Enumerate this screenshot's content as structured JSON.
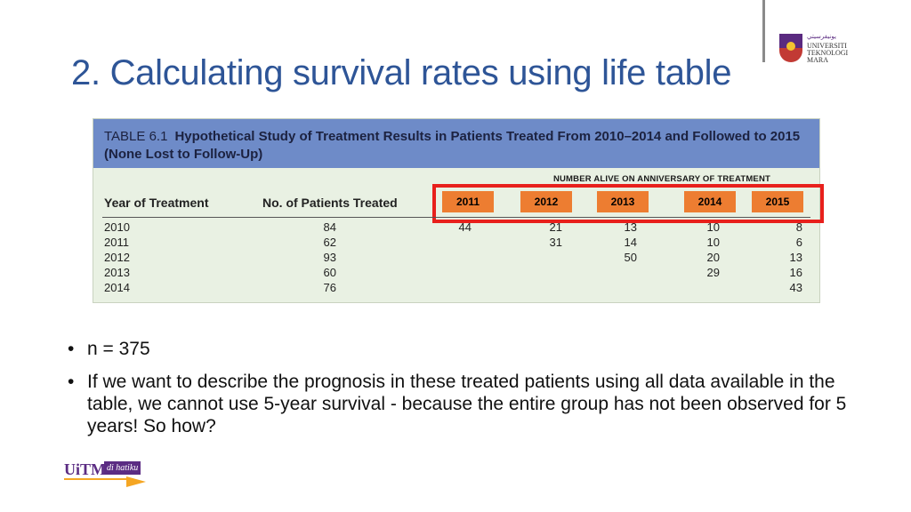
{
  "logo": {
    "jawi": "ﻳﻮﻧﻴﻔﺮﺳﻴﺘﻲ",
    "lines": [
      "UNIVERSITI",
      "TEKNOLOGI",
      "MARA"
    ]
  },
  "slide_title": "2. Calculating survival rates using life table",
  "table": {
    "table_number": "TABLE 6.1",
    "caption": "Hypothetical Study of Treatment Results in Patients Treated From 2010–2014 and Followed to 2015 (None Lost to Follow-Up)",
    "group_header": "NUMBER ALIVE ON ANNIVERSARY OF TREATMENT",
    "col_year": "Year of Treatment",
    "col_patients": "No. of Patients Treated",
    "years": [
      "2011",
      "2012",
      "2013",
      "2014",
      "2015"
    ],
    "rows": [
      {
        "year": "2010",
        "patients": "84",
        "v2011": "44",
        "v2012": "21",
        "v2013": "13",
        "v2014": "10",
        "v2015": "8"
      },
      {
        "year": "2011",
        "patients": "62",
        "v2011": "",
        "v2012": "31",
        "v2013": "14",
        "v2014": "10",
        "v2015": "6"
      },
      {
        "year": "2012",
        "patients": "93",
        "v2011": "",
        "v2012": "",
        "v2013": "50",
        "v2014": "20",
        "v2015": "13"
      },
      {
        "year": "2013",
        "patients": "60",
        "v2011": "",
        "v2012": "",
        "v2013": "",
        "v2014": "29",
        "v2015": "16"
      },
      {
        "year": "2014",
        "patients": "76",
        "v2011": "",
        "v2012": "",
        "v2013": "",
        "v2014": "",
        "v2015": "43"
      }
    ]
  },
  "bullets": [
    "n = 375",
    "If we want to describe the prognosis in these treated patients using all data available in the table, we cannot use 5-year survival - because the entire group has not been observed for 5 years! So how?"
  ],
  "footer_logo": {
    "text": "UiTM",
    "tag": "di hatiku"
  },
  "colors": {
    "title": "#2e5597",
    "table_header": "#6e8bc8",
    "table_body": "#e9f1e3",
    "year_highlight": "#ed7d31",
    "frame": "#e8201c"
  }
}
